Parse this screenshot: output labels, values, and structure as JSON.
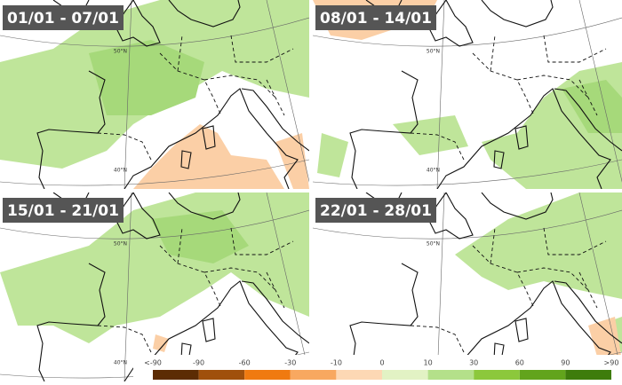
{
  "panels": [
    {
      "title": "01/01 - 07/01"
    },
    {
      "title": "08/01 - 14/01"
    },
    {
      "title": "15/01 - 21/01"
    },
    {
      "title": "22/01 - 28/01"
    }
  ],
  "grid_labels": [
    "50°N",
    "40°N"
  ],
  "legend": {
    "labels": [
      "<-90",
      "-90",
      "-60",
      "-30",
      "-10",
      "0",
      "10",
      "30",
      "60",
      "90",
      ">90"
    ],
    "colors": [
      "#5c2c04",
      "#a0500c",
      "#f07a10",
      "#f8a860",
      "#fdd8b4",
      "#e2f2c4",
      "#b4e08a",
      "#8cc83c",
      "#62a41c",
      "#3e7c0c"
    ]
  }
}
